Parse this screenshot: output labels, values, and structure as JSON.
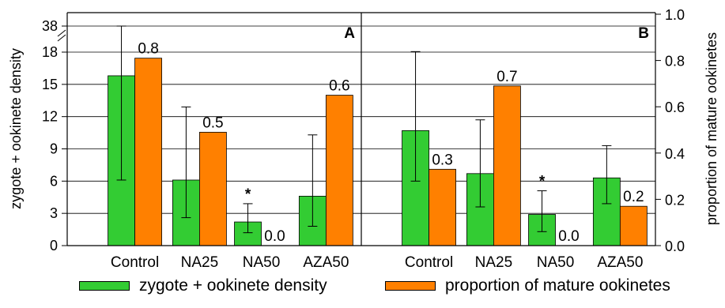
{
  "chart_data": {
    "type": "bar",
    "y_left_label": "zygote + ookinete density",
    "y_right_label": "proportion of mature ookinetes",
    "y_left_ticks": [
      "0",
      "3",
      "6",
      "9",
      "12",
      "15",
      "18",
      "38"
    ],
    "y_left_axis_break": "between 18 and 38",
    "y_right_ticks": [
      "0.0",
      "0.2",
      "0.4",
      "0.6",
      "0.8",
      "1.0"
    ],
    "y_right_range": [
      0,
      1
    ],
    "categories": [
      "Control",
      "NA25",
      "NA50",
      "AZA50"
    ],
    "legend": [
      {
        "label": "zygote + ookinete density",
        "color": "#33cc33"
      },
      {
        "label": "proportion of mature ookinetes",
        "color": "#ff8000"
      }
    ],
    "panels": [
      {
        "name": "A",
        "density": [
          15.8,
          6.1,
          2.2,
          4.6
        ],
        "density_error": [
          [
            6.1,
            38
          ],
          [
            2.6,
            12.9
          ],
          [
            1.2,
            3.9
          ],
          [
            1.8,
            10.3
          ]
        ],
        "proportion": [
          0.8,
          0.5,
          0.0,
          0.6
        ],
        "proportion_labels": [
          "0.8",
          "0.5",
          "0.0",
          "0.6"
        ],
        "proportion_plotted": [
          0.81,
          0.49,
          0.0,
          0.65
        ],
        "significance": [
          "",
          "",
          "*",
          ""
        ]
      },
      {
        "name": "B",
        "density": [
          10.7,
          6.7,
          2.9,
          6.3
        ],
        "density_error": [
          [
            6.0,
            18.4
          ],
          [
            3.6,
            11.7
          ],
          [
            1.3,
            5.1
          ],
          [
            3.9,
            9.3
          ]
        ],
        "proportion": [
          0.3,
          0.7,
          0.0,
          0.2
        ],
        "proportion_labels": [
          "0.3",
          "0.7",
          "0.0",
          "0.2"
        ],
        "proportion_plotted": [
          0.33,
          0.69,
          0.0,
          0.17
        ],
        "significance": [
          "",
          "",
          "*",
          ""
        ]
      }
    ],
    "colors": {
      "density": "#33cc33",
      "proportion": "#ff8000",
      "axis": "#000000"
    }
  }
}
